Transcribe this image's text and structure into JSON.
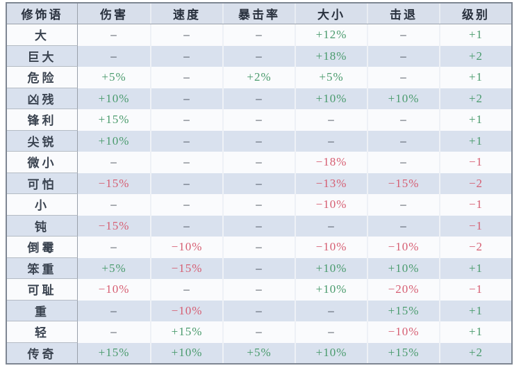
{
  "chart_data": {
    "type": "table",
    "title": "",
    "columns": [
      "修饰语",
      "伤害",
      "速度",
      "暴击率",
      "大小",
      "击退",
      "级别"
    ],
    "rows": [
      {
        "label": "大",
        "values": [
          "–",
          "–",
          "–",
          "+12%",
          "–",
          "+1"
        ]
      },
      {
        "label": "巨大",
        "values": [
          "–",
          "–",
          "–",
          "+18%",
          "–",
          "+2"
        ]
      },
      {
        "label": "危险",
        "values": [
          "+5%",
          "–",
          "+2%",
          "+5%",
          "–",
          "+1"
        ]
      },
      {
        "label": "凶残",
        "values": [
          "+10%",
          "–",
          "–",
          "+10%",
          "+10%",
          "+2"
        ]
      },
      {
        "label": "锋利",
        "values": [
          "+15%",
          "–",
          "–",
          "–",
          "–",
          "+1"
        ]
      },
      {
        "label": "尖锐",
        "values": [
          "+10%",
          "–",
          "–",
          "–",
          "–",
          "+1"
        ]
      },
      {
        "label": "微小",
        "values": [
          "–",
          "–",
          "–",
          "−18%",
          "–",
          "−1"
        ]
      },
      {
        "label": "可怕",
        "values": [
          "−15%",
          "–",
          "–",
          "−13%",
          "−15%",
          "−2"
        ]
      },
      {
        "label": "小",
        "values": [
          "–",
          "–",
          "–",
          "−10%",
          "–",
          "−1"
        ]
      },
      {
        "label": "钝",
        "values": [
          "−15%",
          "–",
          "–",
          "–",
          "–",
          "−1"
        ]
      },
      {
        "label": "倒霉",
        "values": [
          "–",
          "−10%",
          "–",
          "−10%",
          "−10%",
          "−2"
        ]
      },
      {
        "label": "笨重",
        "values": [
          "+5%",
          "−15%",
          "–",
          "+10%",
          "+10%",
          "+1"
        ]
      },
      {
        "label": "可耻",
        "values": [
          "−10%",
          "–",
          "–",
          "+10%",
          "−20%",
          "−1"
        ]
      },
      {
        "label": "重",
        "values": [
          "–",
          "−10%",
          "–",
          "–",
          "+15%",
          "+1"
        ]
      },
      {
        "label": "轻",
        "values": [
          "–",
          "+15%",
          "–",
          "–",
          "−10%",
          "+1"
        ]
      },
      {
        "label": "传奇",
        "values": [
          "+15%",
          "+10%",
          "+5%",
          "+10%",
          "+15%",
          "+2"
        ]
      }
    ],
    "layout": {
      "grid": "boxed-first-column",
      "zebra_rows": true,
      "legend": "none"
    }
  },
  "colors": {
    "positive": "#4a9b6d",
    "negative": "#d65e72",
    "neutral": "#3c4450",
    "row_white": "#fafbfd",
    "row_blue": "#d9e1ee",
    "header_bg": "#d8dfeb",
    "border": "#7e8692"
  }
}
